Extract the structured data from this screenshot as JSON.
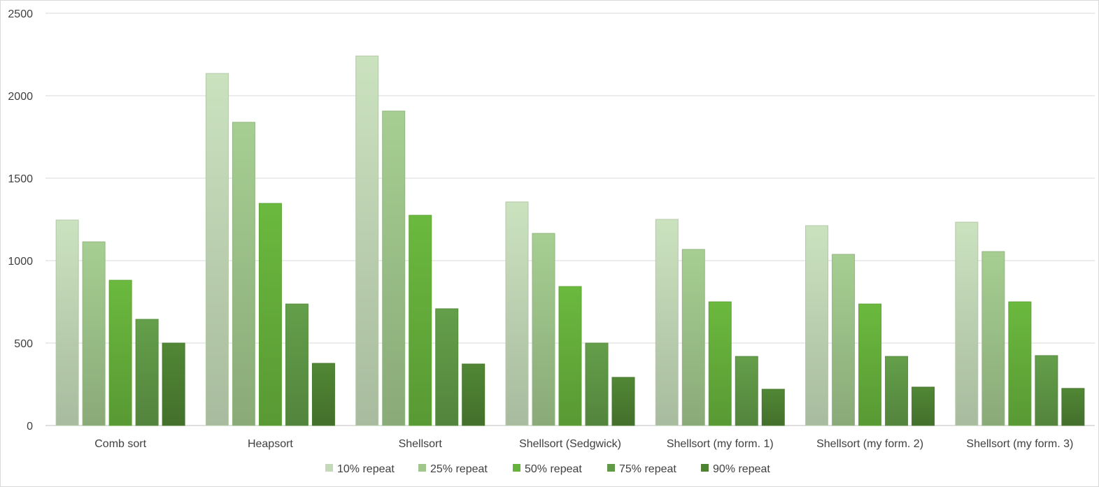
{
  "chart_data": {
    "type": "bar",
    "title": "",
    "xlabel": "",
    "ylabel": "",
    "ylim": [
      0,
      2500
    ],
    "yticks": [
      0,
      500,
      1000,
      1500,
      2000,
      2500
    ],
    "grid": true,
    "legend_position": "bottom",
    "categories": [
      "Comb sort",
      "Heapsort",
      "Shellsort",
      "Shellsort (Sedgwick)",
      "Shellsort (my form. 1)",
      "Shellsort (my form. 2)",
      "Shellsort (my form. 3)"
    ],
    "series": [
      {
        "name": "10% repeat",
        "color": "#c3d9b8",
        "values": [
          1246,
          2135,
          2241,
          1356,
          1250,
          1212,
          1233
        ]
      },
      {
        "name": "25% repeat",
        "color": "#a0c68c",
        "values": [
          1114,
          1839,
          1907,
          1165,
          1068,
          1038,
          1055
        ]
      },
      {
        "name": "50% repeat",
        "color": "#67b23c",
        "values": [
          881,
          1347,
          1275,
          843,
          750,
          737,
          750
        ]
      },
      {
        "name": "75% repeat",
        "color": "#609947",
        "values": [
          644,
          737,
          708,
          500,
          419,
          419,
          424
        ]
      },
      {
        "name": "90% repeat",
        "color": "#4e8233",
        "values": [
          500,
          377,
          373,
          292,
          220,
          233,
          225
        ]
      }
    ]
  }
}
